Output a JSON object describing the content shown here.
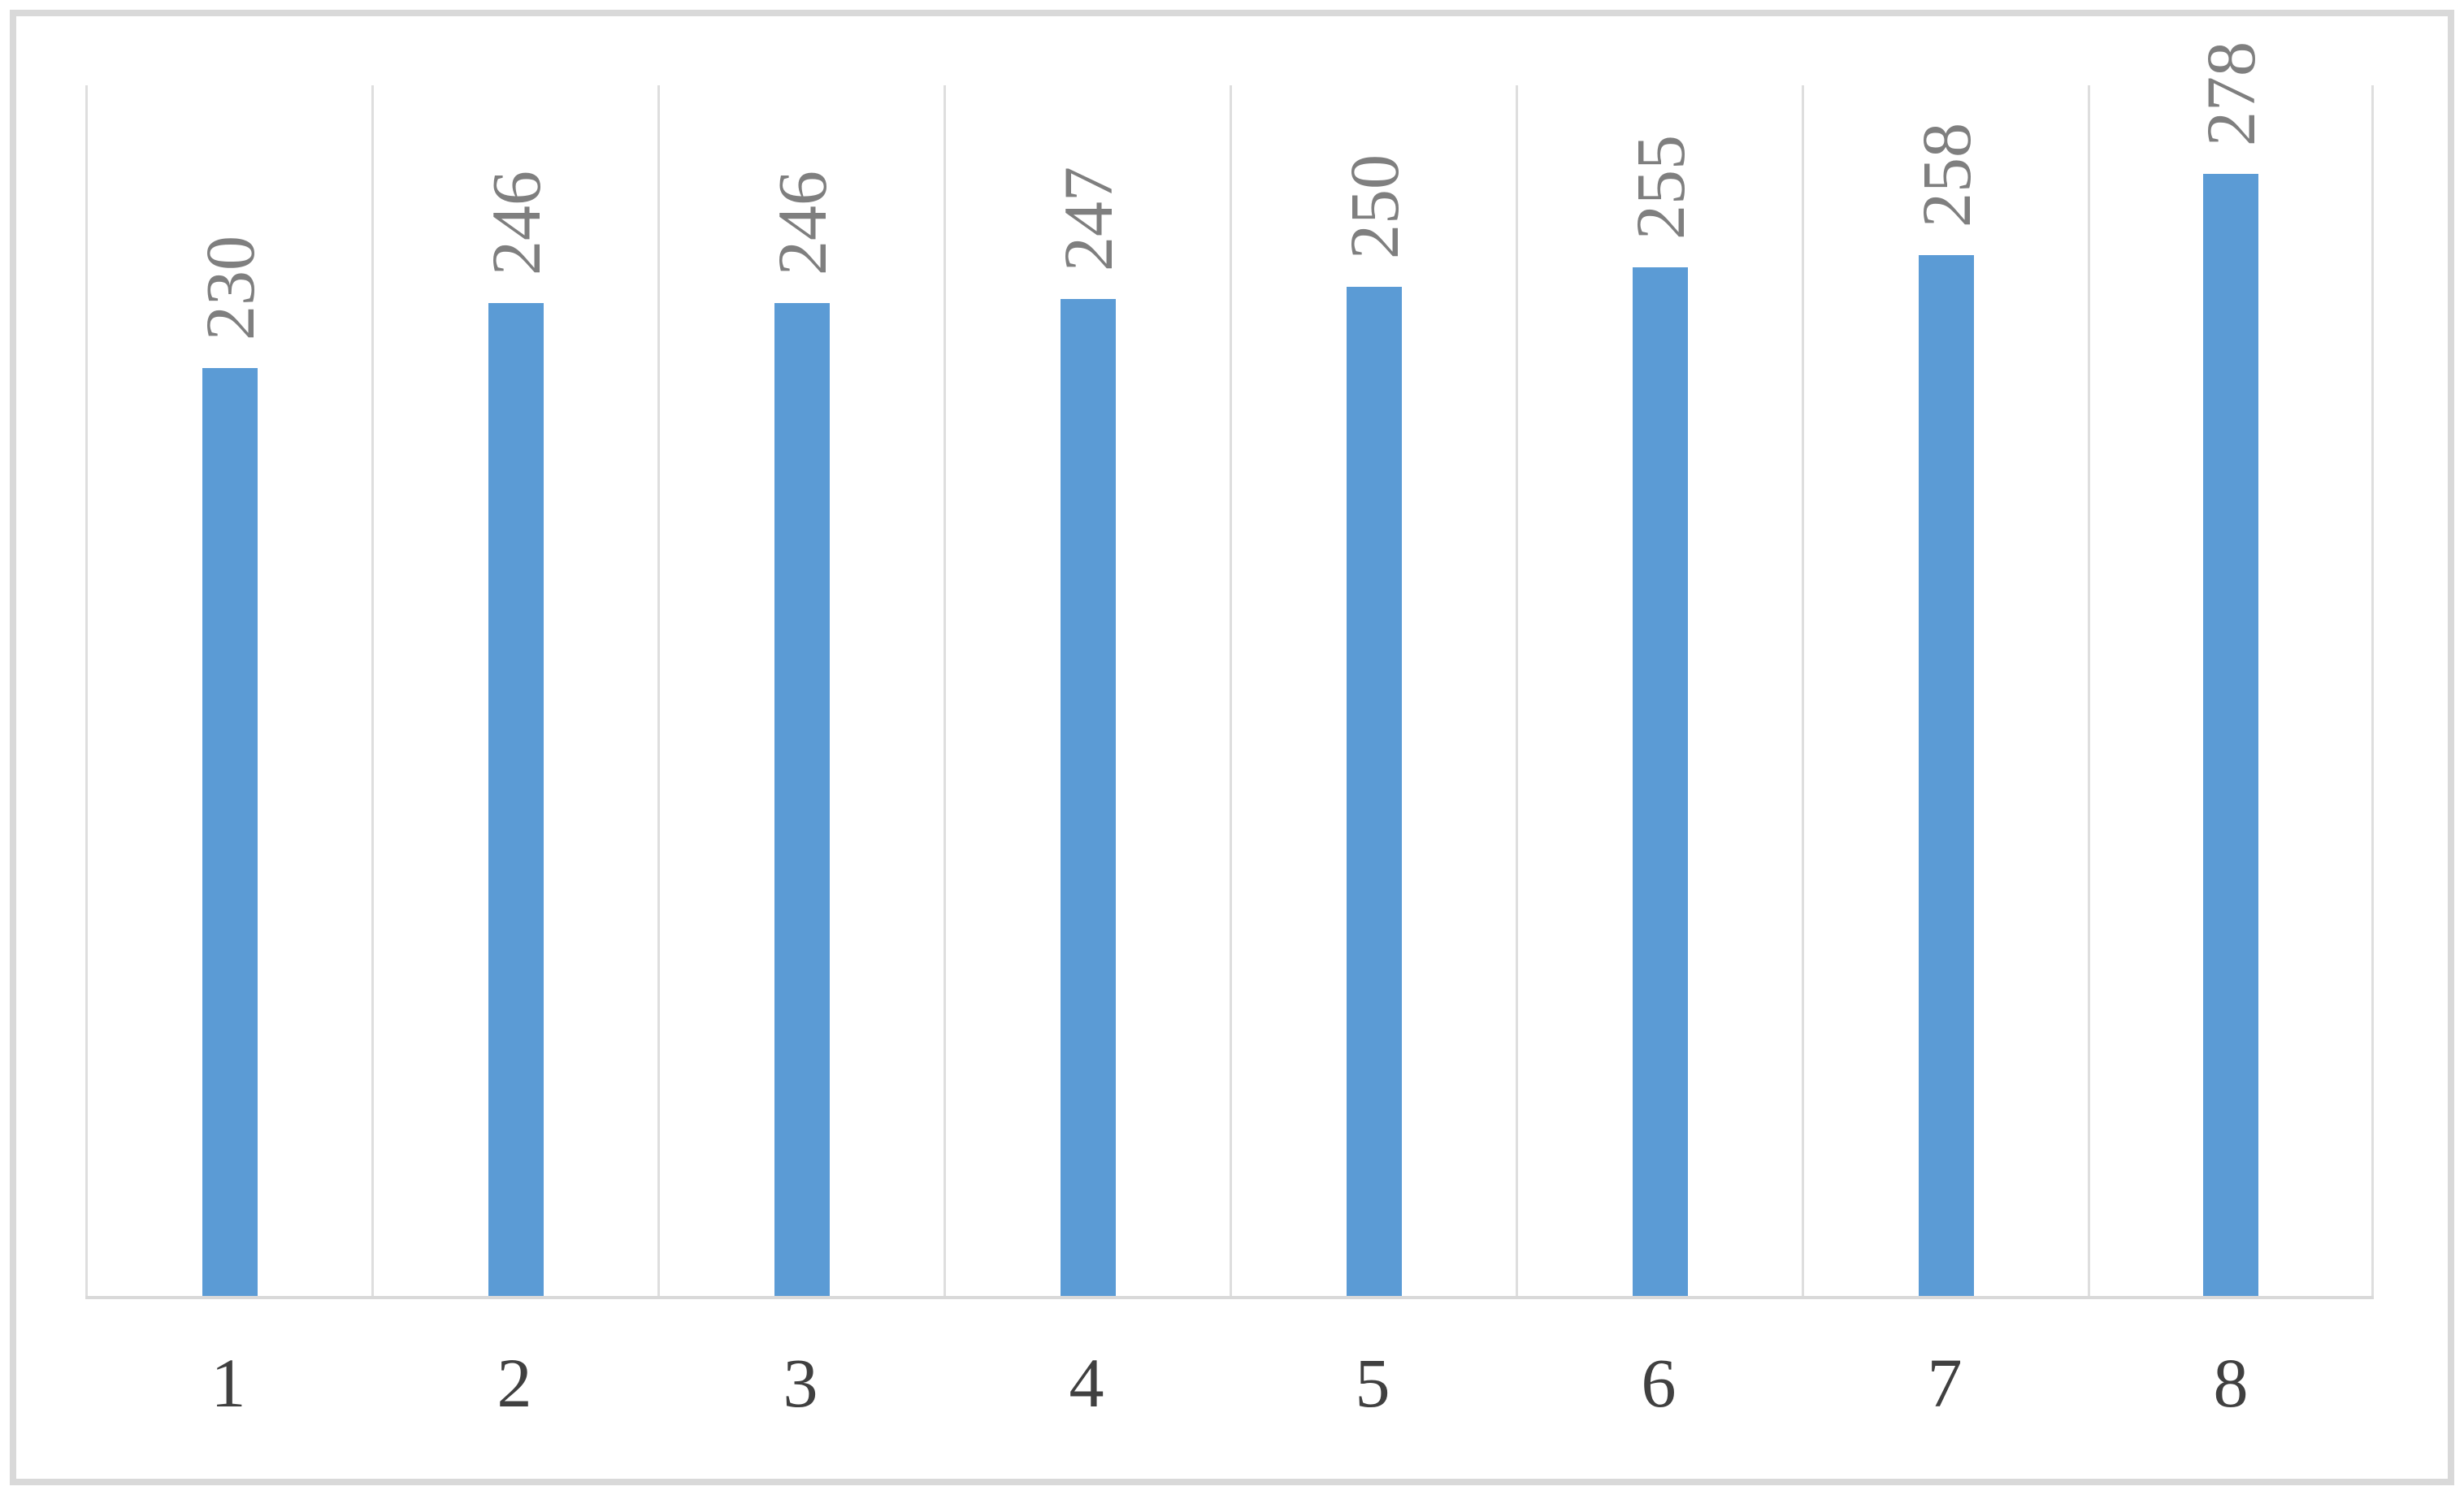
{
  "chart_data": {
    "type": "bar",
    "categories": [
      "1",
      "2",
      "3",
      "4",
      "5",
      "6",
      "7",
      "8"
    ],
    "values": [
      230,
      246,
      246,
      247,
      250,
      255,
      258,
      278
    ],
    "title": "",
    "xlabel": "",
    "ylabel": "",
    "ylim": [
      0,
      300
    ],
    "grid": "vertical category-boundary gridlines only, no horizontal gridlines, no y-axis tick labels",
    "legend": "none",
    "data_labels": "values shown rotated 90deg counterclockwise above each bar",
    "colors": {
      "bar": "#5b9bd5",
      "value_label": "#7f7f7f",
      "axis_label": "#404040",
      "gridline": "#dedede",
      "baseline": "#d9d9d9",
      "frame_border": "#d9d9d9",
      "background": "#ffffff"
    }
  }
}
